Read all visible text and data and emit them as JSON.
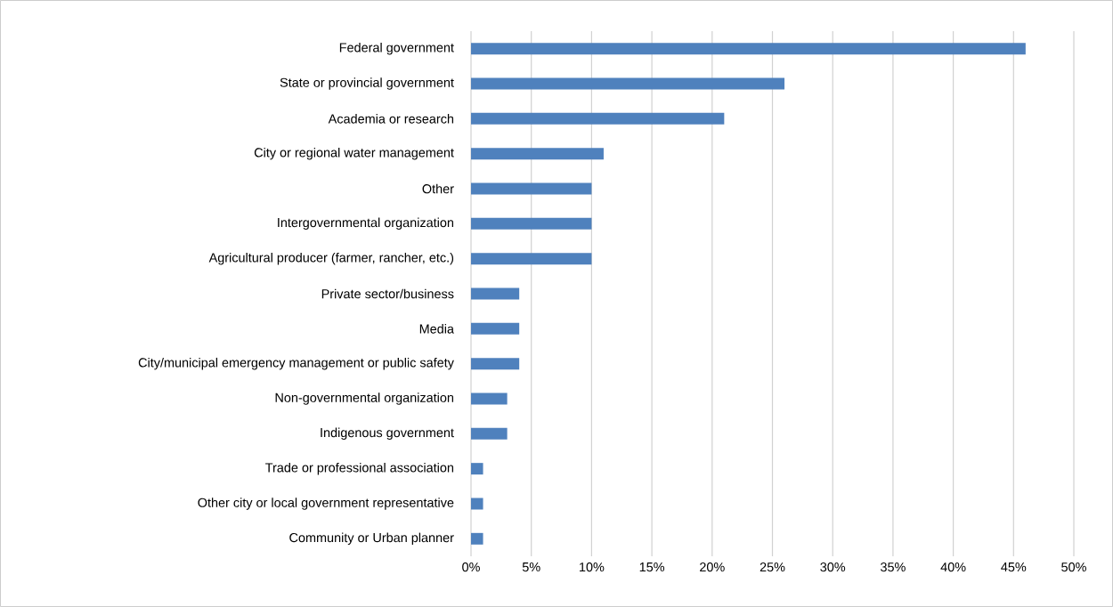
{
  "chart_data": {
    "type": "bar",
    "orientation": "horizontal",
    "categories": [
      "Federal government",
      "State or provincial government",
      "Academia or research",
      "City or regional water management",
      "Other",
      "Intergovernmental organization",
      "Agricultural producer (farmer, rancher, etc.)",
      "Private sector/business",
      "Media",
      "City/municipal emergency management or public safety",
      "Non-governmental organization",
      "Indigenous government",
      "Trade or professional association",
      "Other city or local government representative",
      "Community or Urban planner"
    ],
    "values": [
      46,
      26,
      21,
      11,
      10,
      10,
      10,
      4,
      4,
      4,
      3,
      3,
      1,
      1,
      1
    ],
    "color": "#4f81bd",
    "xlim": [
      0,
      50
    ],
    "xticks": [
      {
        "value": 0,
        "label": "0%"
      },
      {
        "value": 5,
        "label": "5%"
      },
      {
        "value": 10,
        "label": "10%"
      },
      {
        "value": 15,
        "label": "15%"
      },
      {
        "value": 20,
        "label": "20%"
      },
      {
        "value": 25,
        "label": "25%"
      },
      {
        "value": 30,
        "label": "30%"
      },
      {
        "value": 35,
        "label": "35%"
      },
      {
        "value": 40,
        "label": "40%"
      },
      {
        "value": 45,
        "label": "45%"
      },
      {
        "value": 50,
        "label": "50%"
      }
    ],
    "grid": "x"
  }
}
